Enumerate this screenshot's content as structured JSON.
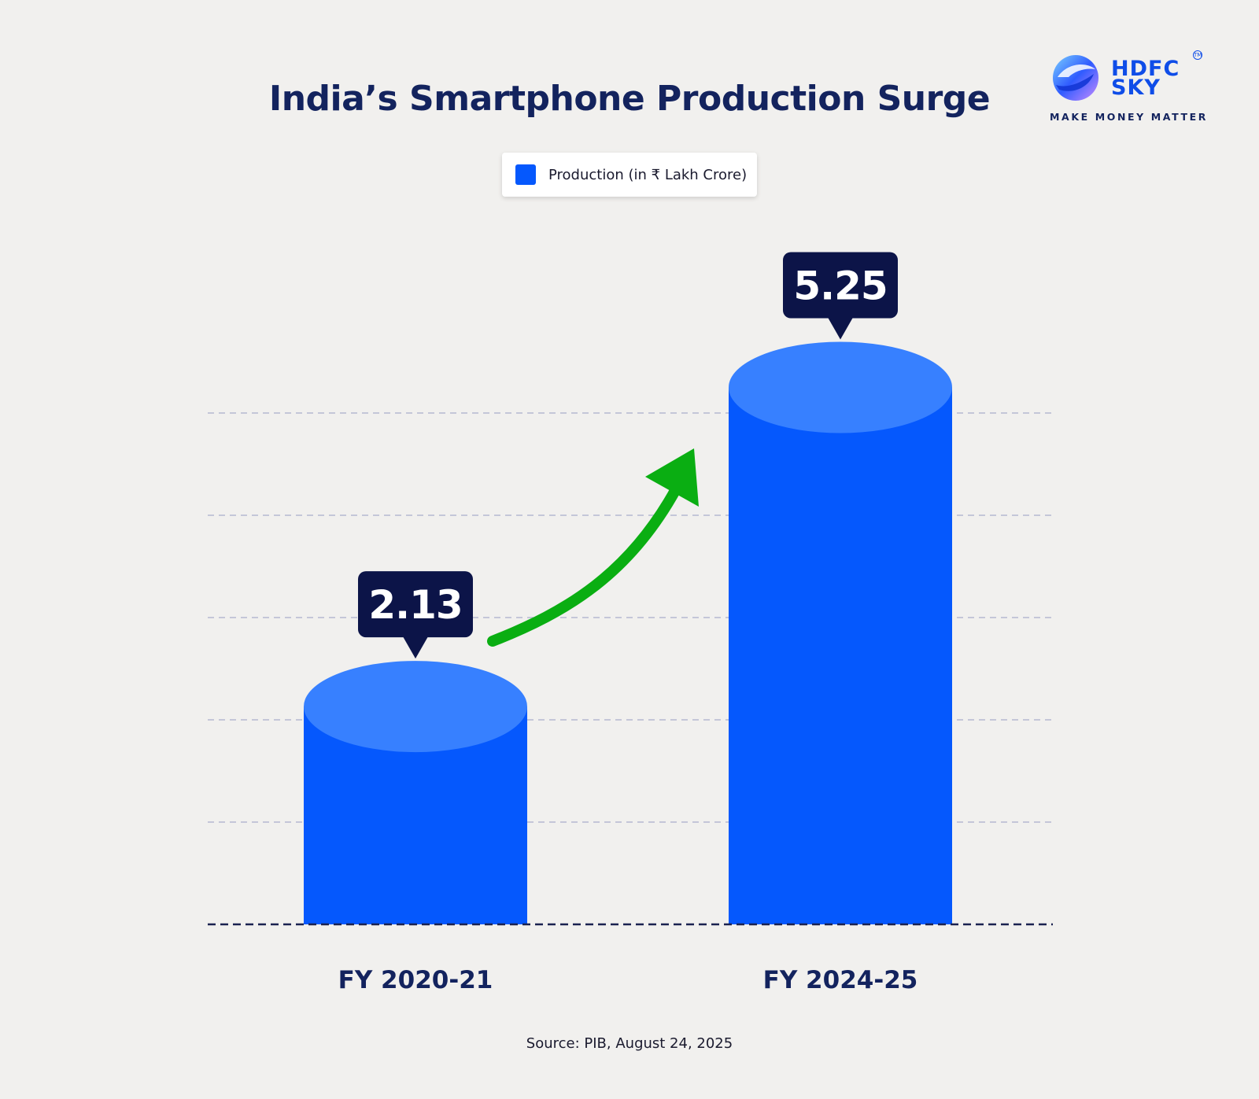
{
  "chart_data": {
    "type": "bar",
    "title": "India’s Smartphone Production Surge",
    "categories": [
      "FY 2020-21",
      "FY 2024-25"
    ],
    "series": [
      {
        "name": "Production (in ₹ Lakh Crore)",
        "values": [
          2.13,
          5.25
        ],
        "value_labels": [
          "2.13",
          "5.25"
        ],
        "color": "#0558fd"
      }
    ],
    "xlabel": "",
    "ylabel": "",
    "ylim": [
      0,
      5
    ],
    "grid": true,
    "legend_position": "top-center",
    "trend_arrow": "up",
    "trend_arrow_color": "#0aae12"
  },
  "colors": {
    "title": "#13235e",
    "bar": "#0558fd",
    "bar_top": "#3780ff",
    "callout": "#0c1448",
    "background": "#f1f0ee"
  },
  "source": "Source: PIB, August 24, 2025",
  "logo": {
    "name_line1": "HDFC",
    "name_line2": "SKY",
    "tagline": "MAKE MONEY MATTER",
    "mark": "TM"
  }
}
